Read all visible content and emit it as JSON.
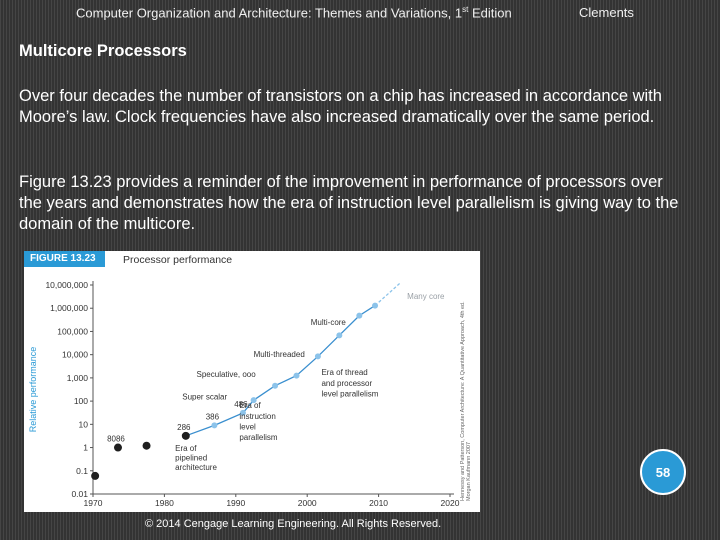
{
  "header": {
    "title": "Computer Organization and Architecture: Themes and Variations, 1",
    "title_sup": "st",
    "title_end": " Edition",
    "author": "Clements"
  },
  "slide": {
    "heading": "Multicore Processors",
    "paragraph1": "Over four decades the number of transistors on a chip has increased in accordance with Moore’s law. Clock frequencies have also increased dramatically over the same period.",
    "paragraph2": "Figure 13.23 provides a reminder of the improvement in performance of processors over the years and demonstrates how the era of instruction level parallelism is giving way to the domain of the multicore.",
    "page_number": "58",
    "copyright": "© 2014 Cengage Learning Engineering. All Rights Reserved."
  },
  "figure": {
    "label": "FIGURE 13.23",
    "title": "Processor performance",
    "side_note": "Hennessy and Patterson, Computer Architecture: A Quantitative Approach, 4th ed. Morgan Kaufmann 2007"
  },
  "colors": {
    "accent": "#2a9ad6",
    "line": "#3a8fcf",
    "dashed": "#8cc3ea",
    "points": "#1f1f1f"
  },
  "chart_data": {
    "type": "scatter",
    "title": "Processor performance",
    "xlabel": "",
    "ylabel": "Relative performance",
    "y_scale": "log",
    "xlim": [
      1970,
      2020
    ],
    "ylim": [
      0.01,
      10000000
    ],
    "x_ticks": [
      "1970",
      "1980",
      "1990",
      "2000",
      "2010",
      "2020"
    ],
    "y_ticks": [
      "0.01",
      "0.1",
      "1",
      "10",
      "100",
      "1,000",
      "10,000",
      "100,000",
      "1,000,000",
      "10,000,000"
    ],
    "grid": false,
    "points": [
      {
        "x": 1970.3,
        "y": 0.06,
        "label": ""
      },
      {
        "x": 1973.5,
        "y": 1,
        "label": "8086"
      },
      {
        "x": 1977.5,
        "y": 1.2,
        "label": ""
      },
      {
        "x": 1983,
        "y": 3.2,
        "label": "286"
      },
      {
        "x": 1987,
        "y": 9,
        "label": "386"
      },
      {
        "x": 1991,
        "y": 31,
        "label": "486"
      },
      {
        "x": 1992.5,
        "y": 110,
        "label": ""
      },
      {
        "x": 1995.5,
        "y": 460,
        "label": ""
      },
      {
        "x": 1998.5,
        "y": 1250,
        "label": ""
      },
      {
        "x": 2001.5,
        "y": 8400,
        "label": ""
      },
      {
        "x": 2004.5,
        "y": 68000,
        "label": ""
      },
      {
        "x": 2007.3,
        "y": 480000,
        "label": ""
      },
      {
        "x": 2009.5,
        "y": 1300000,
        "label": ""
      }
    ],
    "projection": [
      {
        "x": 2009.5,
        "y": 1300000
      },
      {
        "x": 2013,
        "y": 12000000
      }
    ],
    "annotations": [
      {
        "text": "Many core",
        "x": 2014,
        "y": 2500000
      },
      {
        "text": "Multi-core",
        "x": 2000.5,
        "y": 190000
      },
      {
        "text": "Multi-threaded",
        "x": 1992.5,
        "y": 8000
      },
      {
        "text": "Speculative, ooo",
        "x": 1984.5,
        "y": 1100
      },
      {
        "text": "Super scalar",
        "x": 1982.5,
        "y": 120
      },
      {
        "text": "Era of thread",
        "x": 2002,
        "y": 1300
      },
      {
        "text": "and processor",
        "x": 2002,
        "y": 450
      },
      {
        "text": "level parallelism",
        "x": 2002,
        "y": 160
      },
      {
        "text": "Era of",
        "x": 1990.5,
        "y": 50
      },
      {
        "text": "instruction",
        "x": 1990.5,
        "y": 17
      },
      {
        "text": "level",
        "x": 1990.5,
        "y": 6
      },
      {
        "text": "parallelism",
        "x": 1990.5,
        "y": 2.1
      },
      {
        "text": "Era of",
        "x": 1981.5,
        "y": 0.72
      },
      {
        "text": "pipelined",
        "x": 1981.5,
        "y": 0.28
      },
      {
        "text": "architecture",
        "x": 1981.5,
        "y": 0.11
      }
    ]
  }
}
